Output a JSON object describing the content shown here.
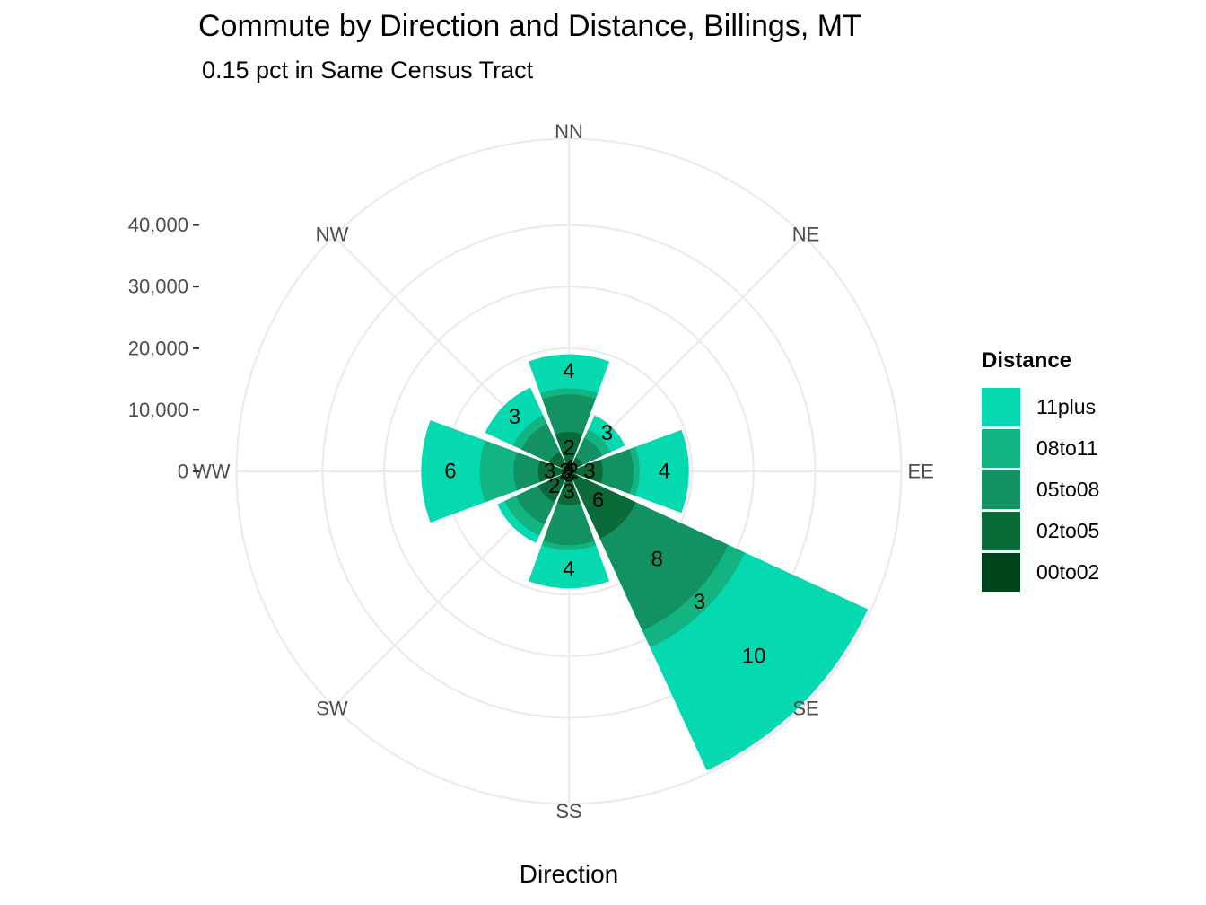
{
  "chart_data": {
    "type": "bar",
    "coord": "polar",
    "title": "Commute by Direction and Distance, Billings, MT",
    "subtitle": "0.15 pct in Same Census Tract",
    "xlabel": "Direction",
    "ylabel": "",
    "directions": [
      "NN",
      "NE",
      "EE",
      "SE",
      "SS",
      "SW",
      "WW",
      "NW"
    ],
    "radial_ticks": [
      0,
      10000,
      20000,
      30000,
      40000
    ],
    "radial_tick_labels": [
      "0",
      "10,000",
      "20,000",
      "30,000",
      "40,000"
    ],
    "ylim": [
      0,
      54000
    ],
    "legend_title": "Distance",
    "legend_position": "right",
    "grid": true,
    "series": [
      {
        "name": "00to02",
        "color": "#00441b",
        "values": {
          "NN": 1200,
          "NE": 1000,
          "EE": 1200,
          "SE": 1500,
          "SS": 1200,
          "SW": 1200,
          "WW": 1200,
          "NW": 1000
        },
        "labels": {
          "NN": "4",
          "NE": "",
          "EE": "2",
          "SE": "",
          "SS": "3",
          "SW": "",
          "WW": "2",
          "NW": ""
        }
      },
      {
        "name": "02to05",
        "color": "#0b6b38",
        "values": {
          "NN": 6400,
          "NE": 2500,
          "EE": 5500,
          "SE": 12000,
          "SS": 5500,
          "SW": 5500,
          "WW": 5000,
          "NW": 3500
        },
        "labels": {
          "NN": "2",
          "NE": "",
          "EE": "3",
          "SE": "6",
          "SS": "3",
          "SW": "2",
          "WW": "3",
          "NW": ""
        }
      },
      {
        "name": "05to08",
        "color": "#129163",
        "values": {
          "NN": 12500,
          "NE": 6000,
          "EE": 10500,
          "SE": 28500,
          "SS": 12000,
          "SW": 9500,
          "WW": 9000,
          "NW": 8500
        },
        "labels": {
          "NN": "",
          "NE": "",
          "EE": "",
          "SE": "8",
          "SS": "",
          "SW": "",
          "WW": "",
          "NW": ""
        }
      },
      {
        "name": "08to11",
        "color": "#12b582",
        "values": {
          "NN": 13500,
          "NE": 7500,
          "EE": 11500,
          "SE": 31500,
          "SS": 12800,
          "SW": 11500,
          "WW": 14500,
          "NW": 10000
        },
        "labels": {
          "NN": "",
          "NE": "",
          "EE": "",
          "SE": "3",
          "SS": "",
          "SW": "",
          "WW": "",
          "NW": ""
        }
      },
      {
        "name": "11plus",
        "color": "#04d9b0",
        "values": {
          "NN": 19000,
          "NE": 10000,
          "EE": 19500,
          "SE": 53500,
          "SS": 19000,
          "SW": 12800,
          "WW": 24000,
          "NW": 15000
        },
        "labels": {
          "NN": "4",
          "NE": "3",
          "EE": "4",
          "SE": "10",
          "SS": "4",
          "SW": "",
          "WW": "6",
          "NW": "3"
        }
      }
    ]
  }
}
